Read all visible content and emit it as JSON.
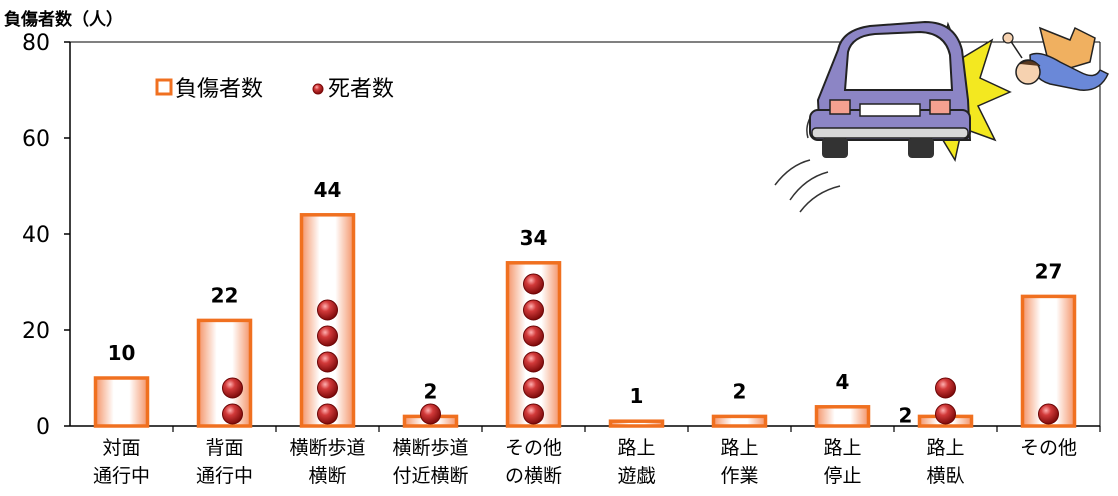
{
  "chart_data": {
    "type": "bar",
    "ylabel": "負傷者数（人）",
    "ylim": [
      0,
      80
    ],
    "yticks": [
      0,
      20,
      40,
      60,
      80
    ],
    "categories": [
      [
        "対面",
        "通行中"
      ],
      [
        "背面",
        "通行中"
      ],
      [
        "横断歩道",
        "横断"
      ],
      [
        "横断歩道",
        "付近横断"
      ],
      [
        "その他",
        "の横断"
      ],
      [
        "路上",
        "遊戯"
      ],
      [
        "路上",
        "作業"
      ],
      [
        "路上",
        "停止"
      ],
      [
        "路上",
        "横臥"
      ],
      [
        "その他"
      ]
    ],
    "series": [
      {
        "name": "負傷者数",
        "values": [
          10,
          22,
          44,
          2,
          34,
          1,
          2,
          4,
          2,
          27
        ]
      },
      {
        "name": "死者数",
        "values": [
          0,
          2,
          5,
          1,
          6,
          0,
          0,
          0,
          2,
          1
        ]
      }
    ],
    "data_labels": [
      "10",
      "22",
      "44",
      "2",
      "34",
      "1",
      "2",
      "4",
      "2",
      "27"
    ],
    "legend_position": "top-left",
    "grid": false,
    "colors": {
      "bar_edge": "#f07020",
      "bar_fill_edge": "#f5a070",
      "bar_fill_center": "#ffffff",
      "ball": "#a01010",
      "ball_highlight": "#ff9a9a",
      "axis": "#000000"
    },
    "illustration": "car-hitting-pedestrian"
  }
}
